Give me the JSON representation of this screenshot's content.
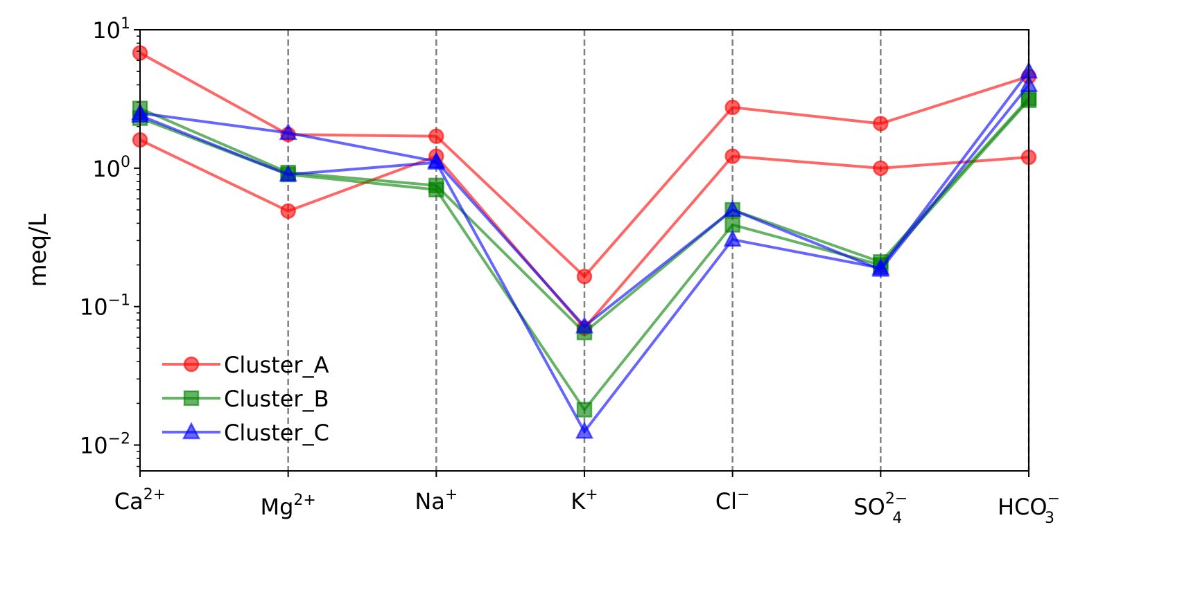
{
  "chart_data": {
    "type": "line",
    "title": "",
    "xlabel": "",
    "ylabel": "meq/L",
    "yscale": "log",
    "ylim": [
      0.0065,
      10
    ],
    "yticks": [
      {
        "value": 0.01,
        "base": "10",
        "exp": "−2"
      },
      {
        "value": 0.1,
        "base": "10",
        "exp": "−1"
      },
      {
        "value": 1,
        "base": "10",
        "exp": "0"
      },
      {
        "value": 10,
        "base": "10",
        "exp": "1"
      }
    ],
    "categories": [
      {
        "base": "Ca",
        "sup": "2+",
        "sub": ""
      },
      {
        "base": "Mg",
        "sup": "2+",
        "sub": ""
      },
      {
        "base": "Na",
        "sup": "+",
        "sub": ""
      },
      {
        "base": "K",
        "sup": "+",
        "sub": ""
      },
      {
        "base": "Cl",
        "sup": "−",
        "sub": ""
      },
      {
        "base": "SO",
        "sup": "2−",
        "sub": "4"
      },
      {
        "base": "HCO",
        "sup": "−",
        "sub": "3"
      }
    ],
    "vertical_grid": "dashed gray at each category",
    "legend_position": "lower-left",
    "series": [
      {
        "name": "Cluster_A",
        "color": "#ff0000",
        "marker": "circle",
        "sample": 1,
        "values": [
          6.8,
          1.75,
          1.7,
          0.165,
          2.75,
          2.1,
          4.6
        ]
      },
      {
        "name": "Cluster_A",
        "color": "#ff0000",
        "marker": "circle",
        "sample": 2,
        "values": [
          1.6,
          0.49,
          1.22,
          0.07,
          1.22,
          1.0,
          1.2
        ]
      },
      {
        "name": "Cluster_B",
        "color": "#008000",
        "marker": "square",
        "sample": 1,
        "values": [
          2.7,
          0.93,
          0.75,
          0.065,
          0.5,
          0.21,
          3.2
        ]
      },
      {
        "name": "Cluster_B",
        "color": "#008000",
        "marker": "square",
        "sample": 2,
        "values": [
          2.3,
          0.9,
          0.7,
          0.018,
          0.39,
          0.2,
          3.1
        ]
      },
      {
        "name": "Cluster_C",
        "color": "#0000ff",
        "marker": "triangle",
        "sample": 1,
        "values": [
          2.5,
          1.8,
          1.12,
          0.072,
          0.5,
          0.185,
          4.0
        ]
      },
      {
        "name": "Cluster_C",
        "color": "#0000ff",
        "marker": "triangle",
        "sample": 2,
        "values": [
          2.4,
          0.9,
          1.1,
          0.0125,
          0.305,
          0.19,
          5.0
        ]
      }
    ],
    "legend": [
      {
        "label": "Cluster_A",
        "color": "#ff0000",
        "marker": "circle"
      },
      {
        "label": "Cluster_B",
        "color": "#008000",
        "marker": "square"
      },
      {
        "label": "Cluster_C",
        "color": "#0000ff",
        "marker": "triangle"
      }
    ]
  }
}
